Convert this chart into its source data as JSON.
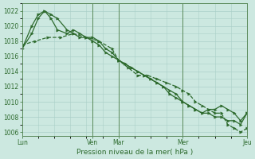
{
  "bg_color": "#cce8e0",
  "grid_color": "#aacfc8",
  "line_color": "#2d6a2d",
  "vline_color": "#5a8a5a",
  "title": "Pression niveau de la mer( hPa )",
  "xtick_labels": [
    "Lun",
    "Ven",
    "Mar",
    "Mer",
    "Jeu"
  ],
  "xtick_positions": [
    0,
    22,
    30,
    50,
    70
  ],
  "vline_positions": [
    22,
    30,
    50,
    70
  ],
  "ytick_min": 1006,
  "ytick_max": 1022,
  "ytick_step": 2,
  "xlim": [
    0,
    70
  ],
  "ylim": [
    1005.5,
    1023
  ],
  "series1_x": [
    0,
    3,
    5,
    7,
    9,
    11,
    14,
    16,
    18,
    20,
    22,
    24,
    26,
    28,
    30,
    32,
    34,
    36,
    38,
    40,
    42,
    44,
    46,
    48,
    50,
    52,
    54,
    56,
    58,
    60,
    62,
    64,
    66,
    68,
    70
  ],
  "series1_y": [
    1017.0,
    1019.0,
    1021.0,
    1022.0,
    1021.5,
    1021.0,
    1019.5,
    1019.0,
    1018.5,
    1018.5,
    1018.0,
    1017.5,
    1016.5,
    1016.0,
    1015.5,
    1015.0,
    1014.5,
    1014.0,
    1013.5,
    1013.0,
    1012.5,
    1012.0,
    1011.0,
    1010.5,
    1010.0,
    1009.5,
    1009.0,
    1008.5,
    1008.5,
    1008.0,
    1008.0,
    1007.5,
    1007.5,
    1007.0,
    1008.5
  ],
  "series2_x": [
    0,
    3,
    5,
    7,
    9,
    11,
    14,
    16,
    18,
    20,
    22,
    24,
    26,
    28,
    30,
    32,
    34,
    36,
    38,
    40,
    42,
    44,
    46,
    48,
    50,
    52,
    54,
    56,
    58,
    60,
    62,
    64,
    66,
    68,
    70
  ],
  "series2_y": [
    1017.0,
    1020.0,
    1021.5,
    1022.0,
    1021.0,
    1019.5,
    1019.0,
    1019.5,
    1019.0,
    1018.5,
    1018.5,
    1018.0,
    1017.0,
    1016.5,
    1015.5,
    1015.0,
    1014.5,
    1014.0,
    1013.5,
    1013.0,
    1012.5,
    1012.0,
    1011.5,
    1011.0,
    1010.0,
    1009.5,
    1009.0,
    1008.5,
    1009.0,
    1009.0,
    1009.5,
    1009.0,
    1008.5,
    1007.5,
    1008.5
  ],
  "series3_x": [
    0,
    4,
    8,
    12,
    16,
    20,
    24,
    28,
    30,
    33,
    36,
    39,
    42,
    45,
    48,
    50,
    52,
    54,
    56,
    58,
    60,
    62,
    64,
    66,
    68,
    70
  ],
  "series3_y": [
    1017.5,
    1018.0,
    1018.5,
    1018.5,
    1019.0,
    1018.5,
    1018.0,
    1017.0,
    1015.5,
    1014.5,
    1013.5,
    1013.5,
    1013.0,
    1012.5,
    1012.0,
    1011.5,
    1011.0,
    1010.0,
    1009.5,
    1009.0,
    1008.5,
    1008.5,
    1007.0,
    1006.5,
    1006.0,
    1006.5
  ]
}
